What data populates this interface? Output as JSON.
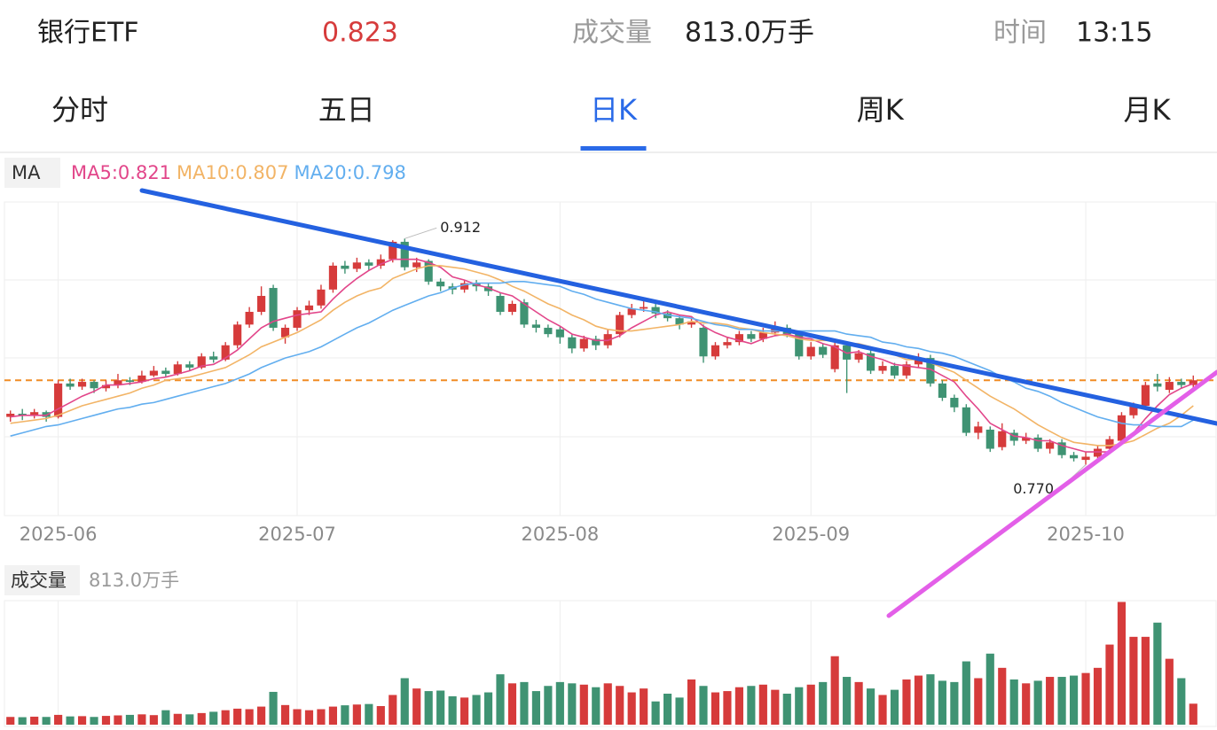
{
  "header": {
    "name": "银行ETF",
    "price": "0.823",
    "volume_label": "成交量",
    "volume": "813.0万手",
    "time_label": "时间",
    "time": "13:15"
  },
  "tabs": [
    "分时",
    "五日",
    "日K",
    "周K",
    "月K"
  ],
  "active_tab": 2,
  "chart_data": [
    {
      "type": "candlestick",
      "indicator": "MA",
      "categories": [
        null,
        null,
        null,
        null,
        "2025-06",
        null,
        null,
        null,
        null,
        null,
        null,
        null,
        null,
        null,
        null,
        null,
        null,
        null,
        null,
        null,
        null,
        null,
        null,
        null,
        "2025-07",
        null,
        null,
        null,
        null,
        null,
        null,
        null,
        null,
        null,
        null,
        null,
        null,
        null,
        null,
        null,
        null,
        null,
        null,
        null,
        null,
        null,
        "2025-08",
        null,
        null,
        null,
        null,
        null,
        null,
        null,
        null,
        null,
        null,
        null,
        null,
        null,
        null,
        null,
        null,
        null,
        null,
        null,
        null,
        "2025-09",
        null,
        null,
        null,
        null,
        null,
        null,
        null,
        null,
        null,
        null,
        null,
        null,
        null,
        null,
        null,
        null,
        null,
        null,
        null,
        null,
        null,
        null,
        "2025-10",
        null,
        null,
        null,
        null,
        null,
        null,
        null,
        null,
        null
      ],
      "open": [
        0.8,
        0.802,
        0.801,
        0.803,
        0.8,
        0.821,
        0.819,
        0.822,
        0.818,
        0.82,
        0.823,
        0.822,
        0.826,
        0.829,
        0.827,
        0.833,
        0.831,
        0.838,
        0.836,
        0.845,
        0.858,
        0.866,
        0.881,
        0.85,
        0.856,
        0.867,
        0.87,
        0.88,
        0.895,
        0.893,
        0.897,
        0.895,
        0.899,
        0.91,
        0.894,
        0.898,
        0.885,
        0.882,
        0.88,
        0.884,
        0.882,
        0.876,
        0.866,
        0.872,
        0.858,
        0.856,
        0.855,
        0.85,
        0.843,
        0.849,
        0.845,
        0.852,
        0.864,
        0.868,
        0.869,
        0.865,
        0.862,
        0.858,
        0.856,
        0.838,
        0.845,
        0.847,
        0.852,
        0.849,
        0.853,
        0.856,
        0.852,
        0.838,
        0.844,
        0.83,
        0.845,
        0.836,
        0.84,
        0.829,
        0.832,
        0.826,
        0.833,
        0.837,
        0.821,
        0.812,
        0.806,
        0.79,
        0.792,
        0.781,
        0.79,
        0.785,
        0.787,
        0.78,
        0.784,
        0.776,
        0.773,
        0.775,
        0.78,
        0.785,
        0.801,
        0.807,
        0.821,
        0.817,
        0.822,
        0.82
      ],
      "high": [
        0.804,
        0.805,
        0.805,
        0.804,
        0.823,
        0.824,
        0.824,
        0.823,
        0.823,
        0.827,
        0.825,
        0.829,
        0.832,
        0.831,
        0.835,
        0.835,
        0.84,
        0.841,
        0.847,
        0.86,
        0.869,
        0.882,
        0.883,
        0.858,
        0.869,
        0.873,
        0.883,
        0.897,
        0.898,
        0.9,
        0.899,
        0.902,
        0.911,
        0.912,
        0.9,
        0.899,
        0.887,
        0.884,
        0.886,
        0.886,
        0.884,
        0.878,
        0.873,
        0.874,
        0.861,
        0.858,
        0.857,
        0.852,
        0.851,
        0.851,
        0.855,
        0.866,
        0.871,
        0.874,
        0.871,
        0.867,
        0.864,
        0.863,
        0.858,
        0.847,
        0.85,
        0.854,
        0.854,
        0.856,
        0.86,
        0.858,
        0.854,
        0.847,
        0.846,
        0.847,
        0.847,
        0.842,
        0.842,
        0.835,
        0.834,
        0.835,
        0.84,
        0.839,
        0.823,
        0.814,
        0.808,
        0.797,
        0.794,
        0.796,
        0.792,
        0.79,
        0.789,
        0.786,
        0.786,
        0.778,
        0.778,
        0.782,
        0.788,
        0.803,
        0.809,
        0.822,
        0.827,
        0.825,
        0.824,
        0.826
      ],
      "low": [
        0.797,
        0.798,
        0.799,
        0.797,
        0.799,
        0.817,
        0.817,
        0.815,
        0.816,
        0.818,
        0.82,
        0.821,
        0.825,
        0.825,
        0.826,
        0.829,
        0.83,
        0.834,
        0.835,
        0.843,
        0.856,
        0.864,
        0.854,
        0.846,
        0.854,
        0.864,
        0.868,
        0.878,
        0.89,
        0.891,
        0.892,
        0.893,
        0.897,
        0.892,
        0.891,
        0.883,
        0.879,
        0.877,
        0.878,
        0.879,
        0.876,
        0.864,
        0.864,
        0.856,
        0.853,
        0.85,
        0.846,
        0.84,
        0.841,
        0.842,
        0.843,
        0.85,
        0.862,
        0.866,
        0.862,
        0.86,
        0.855,
        0.856,
        0.834,
        0.836,
        0.843,
        0.845,
        0.847,
        0.847,
        0.851,
        0.85,
        0.836,
        0.836,
        0.837,
        0.828,
        0.815,
        0.834,
        0.827,
        0.827,
        0.824,
        0.824,
        0.831,
        0.819,
        0.81,
        0.803,
        0.788,
        0.786,
        0.778,
        0.779,
        0.782,
        0.783,
        0.778,
        0.777,
        0.774,
        0.772,
        0.77,
        0.773,
        0.778,
        0.783,
        0.799,
        0.805,
        0.816,
        0.815,
        0.818,
        0.818
      ],
      "close": [
        0.802,
        0.801,
        0.803,
        0.8,
        0.821,
        0.819,
        0.822,
        0.818,
        0.82,
        0.823,
        0.822,
        0.826,
        0.829,
        0.827,
        0.833,
        0.831,
        0.838,
        0.836,
        0.845,
        0.858,
        0.866,
        0.876,
        0.856,
        0.856,
        0.867,
        0.87,
        0.88,
        0.895,
        0.893,
        0.897,
        0.895,
        0.899,
        0.91,
        0.894,
        0.897,
        0.885,
        0.882,
        0.88,
        0.884,
        0.882,
        0.879,
        0.866,
        0.871,
        0.858,
        0.856,
        0.852,
        0.85,
        0.843,
        0.849,
        0.845,
        0.852,
        0.864,
        0.868,
        0.869,
        0.865,
        0.862,
        0.858,
        0.86,
        0.838,
        0.845,
        0.847,
        0.852,
        0.849,
        0.853,
        0.856,
        0.852,
        0.838,
        0.844,
        0.839,
        0.845,
        0.836,
        0.84,
        0.829,
        0.832,
        0.826,
        0.833,
        0.837,
        0.821,
        0.812,
        0.806,
        0.79,
        0.794,
        0.78,
        0.791,
        0.785,
        0.787,
        0.78,
        0.784,
        0.776,
        0.774,
        0.775,
        0.78,
        0.786,
        0.801,
        0.807,
        0.82,
        0.819,
        0.822,
        0.82,
        0.823
      ],
      "up_color": "#d63b3b",
      "down_color": "#3f9373",
      "ylim": [
        0.738,
        0.935
      ],
      "high_label": "0.912",
      "low_label": "0.770",
      "price_line_color": "#f08c24",
      "series": [
        {
          "name": "MA5:0.821",
          "color": "#e2468a",
          "values": [
            0.8,
            0.801,
            0.801,
            0.801,
            0.805,
            0.809,
            0.813,
            0.816,
            0.82,
            0.82,
            0.821,
            0.822,
            0.824,
            0.825,
            0.827,
            0.829,
            0.832,
            0.833,
            0.837,
            0.842,
            0.849,
            0.856,
            0.86,
            0.862,
            0.864,
            0.865,
            0.866,
            0.874,
            0.881,
            0.887,
            0.892,
            0.896,
            0.899,
            0.899,
            0.899,
            0.897,
            0.894,
            0.888,
            0.886,
            0.883,
            0.881,
            0.878,
            0.876,
            0.871,
            0.866,
            0.861,
            0.857,
            0.852,
            0.85,
            0.848,
            0.848,
            0.851,
            0.856,
            0.86,
            0.864,
            0.866,
            0.864,
            0.863,
            0.857,
            0.853,
            0.85,
            0.848,
            0.846,
            0.849,
            0.851,
            0.852,
            0.85,
            0.849,
            0.846,
            0.844,
            0.84,
            0.841,
            0.838,
            0.836,
            0.833,
            0.832,
            0.831,
            0.83,
            0.826,
            0.822,
            0.813,
            0.805,
            0.796,
            0.792,
            0.788,
            0.787,
            0.785,
            0.785,
            0.782,
            0.78,
            0.778,
            0.778,
            0.778,
            0.783,
            0.79,
            0.799,
            0.807,
            0.814,
            0.818,
            0.821
          ]
        },
        {
          "name": "MA10:0.807",
          "color": "#f2b466",
          "values": [
            0.796,
            0.797,
            0.798,
            0.799,
            0.801,
            0.804,
            0.807,
            0.809,
            0.811,
            0.813,
            0.815,
            0.818,
            0.82,
            0.823,
            0.824,
            0.825,
            0.827,
            0.829,
            0.831,
            0.835,
            0.839,
            0.844,
            0.847,
            0.85,
            0.853,
            0.857,
            0.861,
            0.867,
            0.872,
            0.876,
            0.879,
            0.881,
            0.887,
            0.89,
            0.893,
            0.895,
            0.895,
            0.894,
            0.893,
            0.891,
            0.889,
            0.886,
            0.882,
            0.879,
            0.875,
            0.871,
            0.868,
            0.864,
            0.861,
            0.857,
            0.855,
            0.854,
            0.854,
            0.855,
            0.856,
            0.857,
            0.858,
            0.86,
            0.859,
            0.859,
            0.858,
            0.856,
            0.855,
            0.853,
            0.852,
            0.851,
            0.849,
            0.848,
            0.848,
            0.848,
            0.846,
            0.846,
            0.844,
            0.841,
            0.839,
            0.836,
            0.836,
            0.834,
            0.831,
            0.828,
            0.823,
            0.818,
            0.813,
            0.809,
            0.805,
            0.8,
            0.795,
            0.791,
            0.787,
            0.784,
            0.783,
            0.782,
            0.782,
            0.783,
            0.785,
            0.789,
            0.793,
            0.796,
            0.801,
            0.807
          ]
        },
        {
          "name": "MA20:0.798",
          "color": "#62aeef",
          "values": [
            0.788,
            0.79,
            0.792,
            0.794,
            0.795,
            0.797,
            0.799,
            0.801,
            0.803,
            0.805,
            0.806,
            0.808,
            0.809,
            0.811,
            0.813,
            0.815,
            0.817,
            0.819,
            0.821,
            0.824,
            0.827,
            0.831,
            0.834,
            0.837,
            0.839,
            0.841,
            0.844,
            0.848,
            0.852,
            0.856,
            0.859,
            0.863,
            0.867,
            0.87,
            0.873,
            0.876,
            0.878,
            0.881,
            0.883,
            0.884,
            0.884,
            0.884,
            0.885,
            0.885,
            0.884,
            0.883,
            0.882,
            0.879,
            0.877,
            0.874,
            0.872,
            0.87,
            0.868,
            0.867,
            0.866,
            0.864,
            0.863,
            0.862,
            0.86,
            0.858,
            0.857,
            0.855,
            0.855,
            0.854,
            0.854,
            0.854,
            0.854,
            0.854,
            0.854,
            0.854,
            0.852,
            0.851,
            0.85,
            0.847,
            0.846,
            0.844,
            0.843,
            0.841,
            0.84,
            0.838,
            0.835,
            0.832,
            0.829,
            0.825,
            0.822,
            0.818,
            0.816,
            0.813,
            0.809,
            0.806,
            0.803,
            0.8,
            0.798,
            0.796,
            0.795,
            0.795,
            0.794,
            0.794,
            0.794,
            0.798
          ]
        }
      ]
    },
    {
      "type": "bar",
      "title": "成交量",
      "subtitle": "813.0万手",
      "values": [
        300,
        290,
        310,
        300,
        380,
        320,
        330,
        300,
        340,
        360,
        380,
        400,
        370,
        560,
        420,
        400,
        450,
        500,
        560,
        620,
        600,
        700,
        1270,
        760,
        600,
        560,
        600,
        700,
        750,
        780,
        800,
        720,
        1150,
        1800,
        1400,
        1300,
        1320,
        1100,
        1050,
        1150,
        1250,
        1950,
        1600,
        1650,
        1300,
        1500,
        1650,
        1600,
        1550,
        1450,
        1600,
        1500,
        1250,
        1400,
        900,
        1200,
        1050,
        1750,
        1500,
        1250,
        1300,
        1450,
        1500,
        1550,
        1350,
        1200,
        1450,
        1550,
        1650,
        2650,
        1850,
        1650,
        1400,
        1150,
        1350,
        1750,
        1900,
        1950,
        1700,
        1650,
        2450,
        1800,
        2750,
        2200,
        1750,
        1600,
        1700,
        1850,
        1850,
        1900,
        2000,
        2200,
        3100,
        4750,
        3400,
        3400,
        3950,
        2550,
        1800,
        813
      ],
      "ylim": [
        0,
        4800
      ]
    }
  ]
}
